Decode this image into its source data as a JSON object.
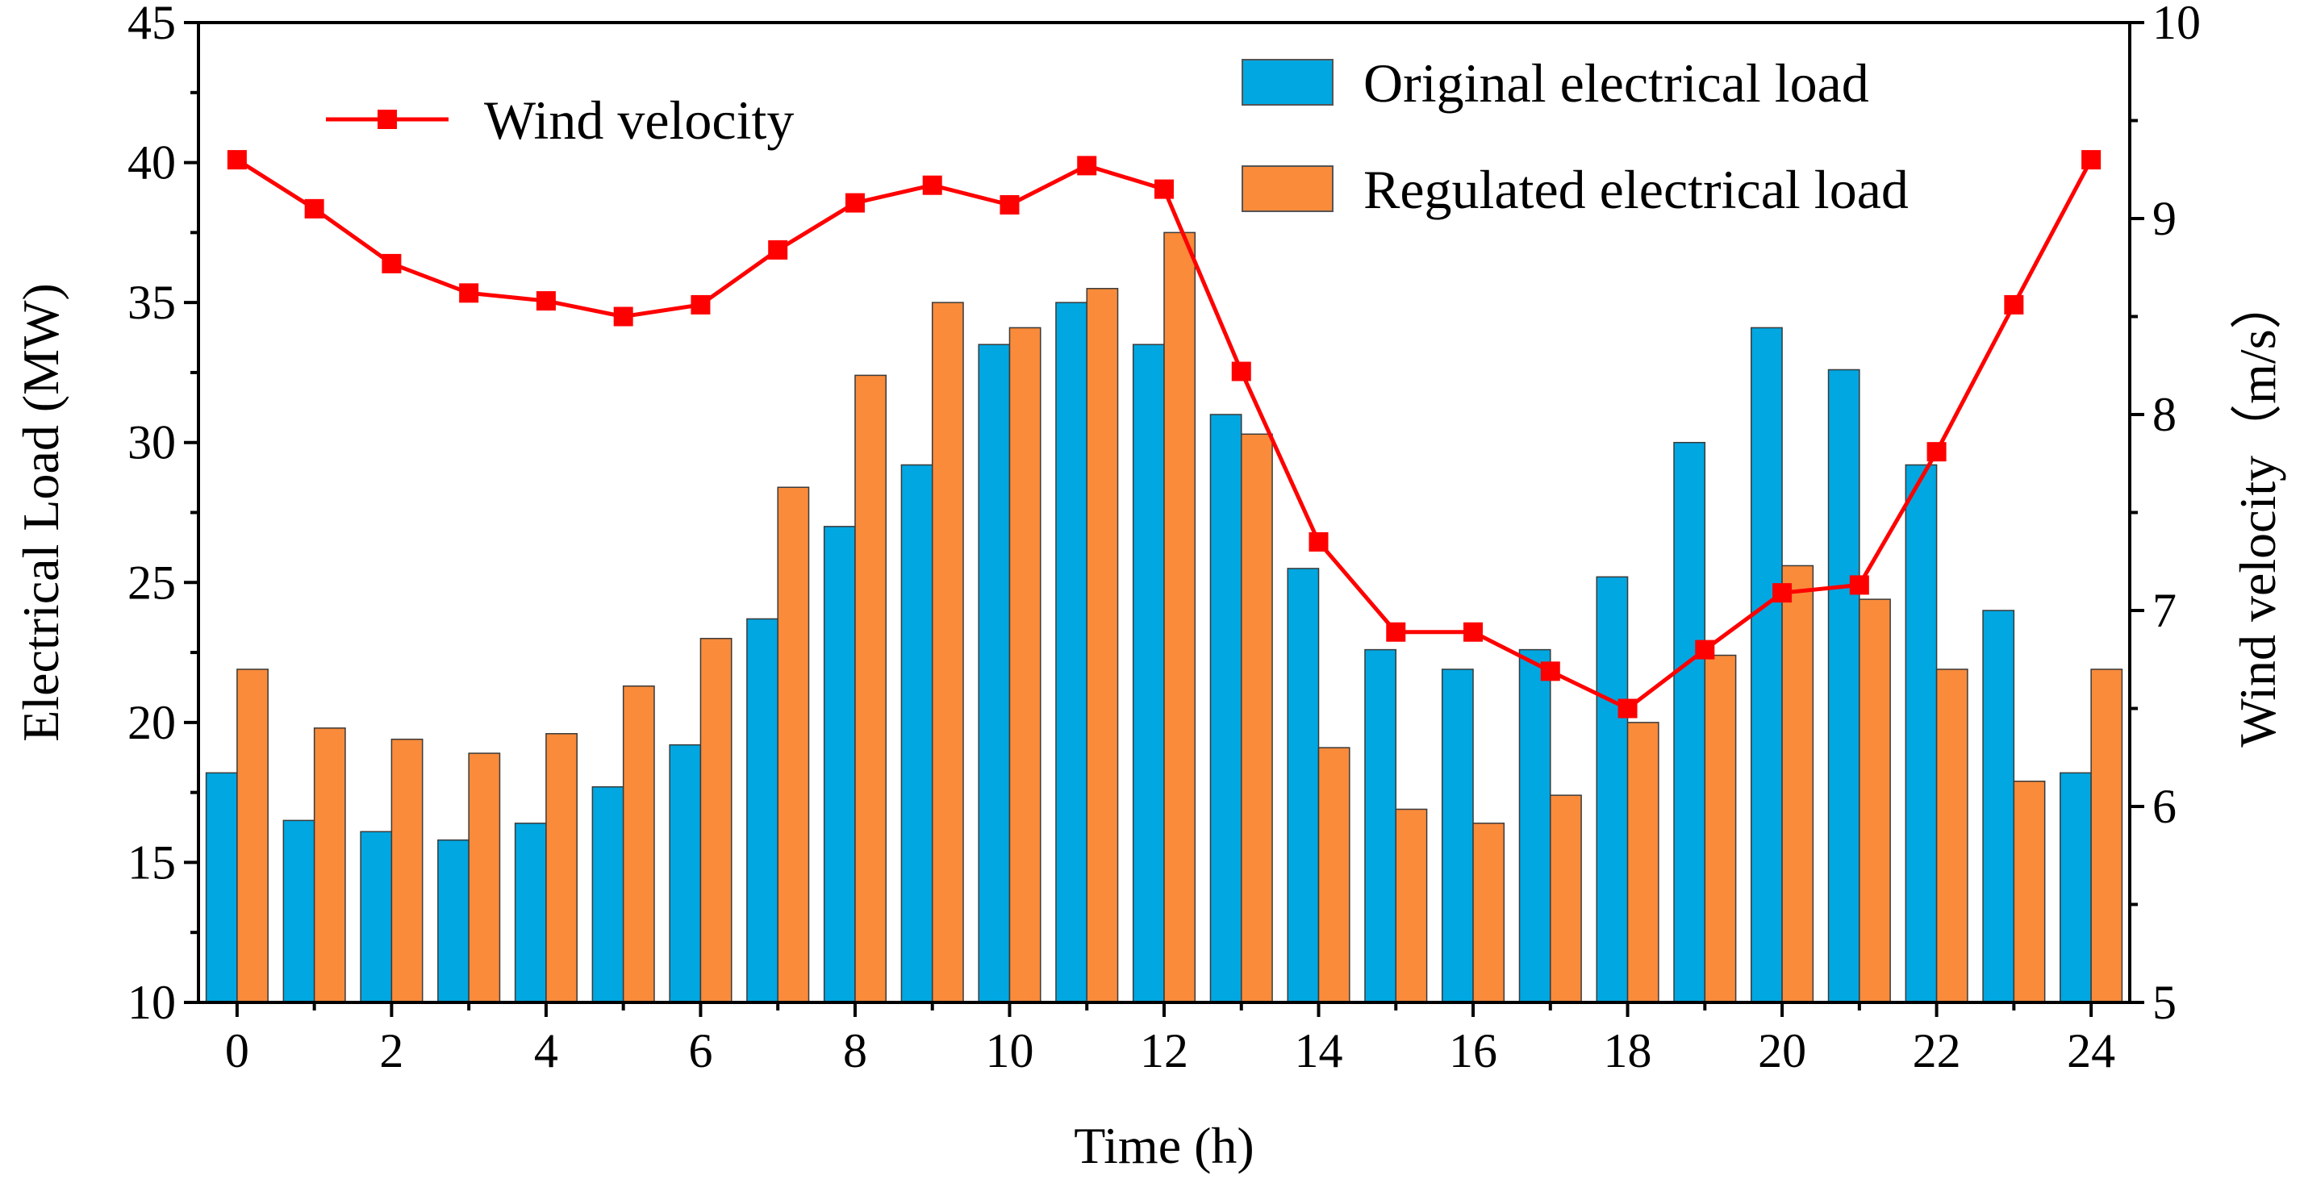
{
  "chart_data": {
    "type": "bar",
    "title": "",
    "xlabel": "Time (h)",
    "ylabel": "Electrical Load (MW)",
    "y2label": "Wind velocity（m/s）",
    "xlim": [
      -0.5,
      24.5
    ],
    "ylim": [
      10,
      45
    ],
    "y2lim": [
      5,
      10
    ],
    "x_ticks": [
      0,
      2,
      4,
      6,
      8,
      10,
      12,
      14,
      16,
      18,
      20,
      22,
      24
    ],
    "y_ticks": [
      10,
      15,
      20,
      25,
      30,
      35,
      40,
      45
    ],
    "y2_ticks": [
      5,
      6,
      7,
      8,
      9,
      10
    ],
    "x": [
      0,
      1,
      2,
      3,
      4,
      5,
      6,
      7,
      8,
      9,
      10,
      11,
      12,
      13,
      14,
      15,
      16,
      17,
      18,
      19,
      20,
      21,
      22,
      23,
      24
    ],
    "series": [
      {
        "name": "Original electrical load",
        "kind": "bar",
        "axis": "left",
        "color": "#00A7E1",
        "values": [
          18.2,
          16.5,
          16.1,
          15.8,
          16.4,
          17.7,
          19.2,
          23.7,
          27.0,
          29.2,
          33.5,
          35.0,
          33.5,
          31.0,
          25.5,
          22.6,
          21.9,
          22.6,
          25.2,
          30.0,
          34.1,
          32.6,
          29.2,
          24.0,
          18.2
        ]
      },
      {
        "name": "Regulated electrical load",
        "kind": "bar",
        "axis": "left",
        "color": "#F98B3B",
        "values": [
          21.9,
          19.8,
          19.4,
          18.9,
          19.6,
          21.3,
          23.0,
          28.4,
          32.4,
          35.0,
          34.1,
          35.5,
          37.5,
          30.3,
          19.1,
          16.9,
          16.4,
          17.4,
          20.0,
          22.4,
          25.6,
          24.4,
          21.9,
          17.9,
          21.9
        ]
      },
      {
        "name": "Wind velocity",
        "kind": "line",
        "axis": "right",
        "color": "#FF0000",
        "values": [
          9.3,
          9.05,
          8.77,
          8.62,
          8.58,
          8.5,
          8.56,
          8.84,
          9.08,
          9.17,
          9.07,
          9.27,
          9.15,
          8.22,
          7.35,
          6.89,
          6.89,
          6.69,
          6.5,
          6.8,
          7.09,
          7.13,
          7.81,
          8.56,
          9.3
        ]
      }
    ],
    "legend": [
      {
        "label": "Wind velocity",
        "position": "top-left"
      },
      {
        "label": "Original electrical load",
        "position": "top-right"
      },
      {
        "label": "Regulated electrical load",
        "position": "top-right"
      }
    ]
  }
}
